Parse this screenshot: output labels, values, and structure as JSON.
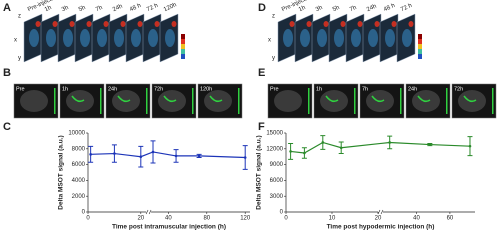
{
  "figure": {
    "panel_letters": [
      "A",
      "B",
      "C",
      "D",
      "E",
      "F"
    ],
    "panel_a": {
      "axis_letters": [
        "z",
        "x",
        "y"
      ],
      "slice_labels": [
        "Pre-injection",
        "1h",
        "3h",
        "5h",
        "7h",
        "24h",
        "48 h",
        "72 h",
        "120h"
      ]
    },
    "panel_b": {
      "frame_labels": [
        "Pre",
        "1h",
        "24h",
        "72h",
        "120h"
      ]
    },
    "panel_d": {
      "axis_letters": [
        "z",
        "x",
        "y"
      ],
      "slice_labels": [
        "Pre-injection",
        "1h",
        "3h",
        "5h",
        "7h",
        "24h",
        "48 h",
        "72 h"
      ]
    },
    "panel_e": {
      "frame_labels": [
        "Pre",
        "1h",
        "7h",
        "24h",
        "72h"
      ]
    }
  },
  "chart_data": [
    {
      "type": "line",
      "color": "#1c34b8",
      "x_label": "Time post intramuscular injection (h)",
      "y_label": "Delta MSOT signal (a.u.)",
      "x": [
        1,
        10,
        20,
        24,
        48,
        72,
        120
      ],
      "values": [
        7300,
        7400,
        7000,
        7600,
        7100,
        7100,
        6900
      ],
      "errors": [
        1000,
        1100,
        1300,
        1400,
        800,
        200,
        1500
      ],
      "x_segments": [
        {
          "xlim": [
            0,
            22
          ],
          "xticks": [
            0,
            20
          ]
        },
        {
          "xlim": [
            22,
            125
          ],
          "xticks": [
            40,
            80,
            120
          ]
        }
      ],
      "ylim": [
        0,
        10000
      ],
      "yticks": [
        0,
        2000,
        4000,
        6000,
        8000,
        10000
      ]
    },
    {
      "type": "line",
      "color": "#2a8a2a",
      "x_label": "Time post hypodermic injection (h)",
      "y_label": "Delta MSOT signal (a.u.)",
      "x": [
        1,
        4,
        8,
        12,
        24,
        48,
        72
      ],
      "values": [
        11500,
        11200,
        13200,
        12200,
        13200,
        12800,
        12500
      ],
      "errors": [
        1500,
        1000,
        1300,
        1100,
        1200,
        200,
        1800
      ],
      "x_segments": [
        {
          "xlim": [
            0,
            20
          ],
          "xticks": [
            0,
            10,
            20
          ]
        },
        {
          "xlim": [
            20,
            75
          ],
          "xticks": [
            40,
            60
          ]
        }
      ],
      "ylim": [
        0,
        15000
      ],
      "yticks": [
        0,
        3000,
        6000,
        9000,
        12000,
        15000
      ]
    }
  ]
}
